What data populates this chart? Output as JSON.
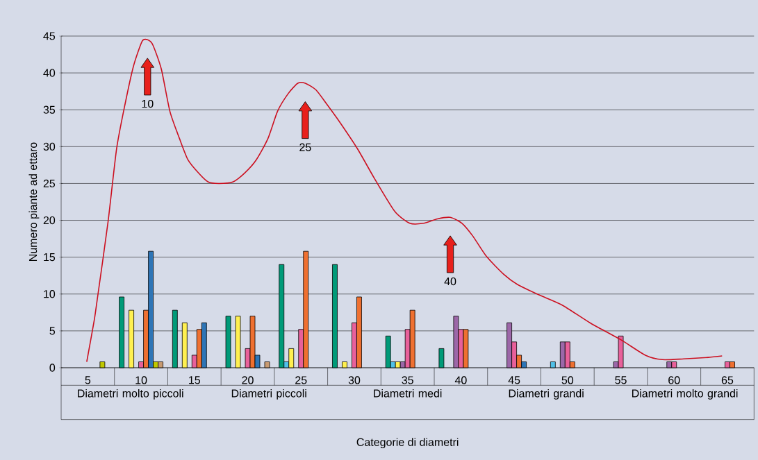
{
  "chart_data": {
    "type": "bar",
    "xlabel": "Categorie di diametri",
    "ylabel": "Numero piante ad ettaro",
    "x": [
      5,
      10,
      15,
      20,
      25,
      30,
      35,
      40,
      45,
      50,
      55,
      60,
      65
    ],
    "xlim": [
      2.5,
      67.5
    ],
    "xticks": [
      5,
      10,
      15,
      20,
      25,
      30,
      35,
      40,
      45,
      50,
      55,
      60,
      65
    ],
    "ylim": [
      0,
      45
    ],
    "yticks": [
      0,
      5,
      10,
      15,
      20,
      25,
      30,
      35,
      40,
      45
    ],
    "grid": "y",
    "series": [
      {
        "color": "#009a78",
        "values": [
          null,
          9.6,
          7.8,
          7.0,
          14.0,
          14.0,
          4.3,
          2.6,
          null,
          null,
          null,
          null,
          null
        ]
      },
      {
        "color": "#4fc0e8",
        "values": [
          null,
          null,
          null,
          null,
          0.8,
          null,
          0.8,
          null,
          null,
          0.8,
          null,
          null,
          null
        ]
      },
      {
        "color": "#fff050",
        "values": [
          null,
          7.8,
          6.1,
          7.0,
          2.6,
          0.8,
          0.8,
          null,
          null,
          null,
          null,
          null,
          null
        ]
      },
      {
        "color": "#9c67a8",
        "values": [
          null,
          null,
          null,
          null,
          null,
          null,
          0.8,
          7.0,
          6.1,
          3.5,
          0.8,
          0.8,
          null
        ]
      },
      {
        "color": "#e8609a",
        "values": [
          null,
          0.8,
          1.7,
          2.6,
          5.2,
          6.1,
          5.2,
          5.2,
          3.5,
          3.5,
          4.3,
          0.8,
          0.8
        ]
      },
      {
        "color": "#ef7030",
        "values": [
          null,
          7.8,
          5.2,
          7.0,
          15.8,
          9.6,
          7.8,
          5.2,
          1.7,
          0.8,
          null,
          null,
          0.8
        ]
      },
      {
        "color": "#2e75b6",
        "values": [
          null,
          15.8,
          6.1,
          1.7,
          null,
          null,
          null,
          null,
          0.8,
          null,
          null,
          null,
          null
        ]
      },
      {
        "color": "#c0c800",
        "values": [
          0.8,
          0.8,
          null,
          null,
          null,
          null,
          null,
          null,
          null,
          null,
          null,
          null,
          null
        ]
      },
      {
        "color": "#c89a70",
        "values": [
          null,
          0.8,
          null,
          0.8,
          null,
          null,
          null,
          null,
          null,
          null,
          null,
          null,
          null
        ]
      },
      {
        "type": "line",
        "color": "#cc1020",
        "x": [
          4.9,
          5.6,
          5.9,
          6.9,
          7.7,
          8.5,
          9.3,
          10.1,
          10.6,
          11.1,
          11.9,
          12.7,
          13.6,
          14.4,
          15.4,
          16.3,
          17.3,
          18.6,
          19.7,
          20.8,
          21.9,
          22.8,
          23.8,
          24.7,
          25.4,
          26.4,
          27.4,
          28.6,
          30.3,
          32,
          33.8,
          35.2,
          36.5,
          37.8,
          39,
          40.1,
          41.1,
          42.4,
          44,
          45.3,
          47.3,
          49.5,
          52.1,
          55,
          57.3,
          58.9,
          60.9,
          63.2,
          64.5
        ],
        "values": [
          0.8,
          6.4,
          9.4,
          19.8,
          29.7,
          35.8,
          41,
          44.3,
          44.5,
          43.8,
          40.5,
          34.8,
          31.1,
          28.2,
          26.4,
          25.2,
          25,
          25.2,
          26.4,
          28.2,
          31.1,
          34.8,
          37.2,
          38.6,
          38.6,
          37.7,
          35.8,
          33.4,
          29.7,
          25.4,
          21.2,
          19.6,
          19.6,
          20.2,
          20.4,
          19.6,
          17.9,
          15.1,
          12.7,
          11.3,
          9.9,
          8.5,
          6.1,
          3.8,
          1.7,
          1.1,
          1.2,
          1.4,
          1.6
        ]
      }
    ],
    "annotations": [
      "10",
      "25",
      "40",
      "Diametri molto piccoli",
      "Diametri piccoli",
      "Diametri medi",
      "Diametri grandi",
      "Diametri molto grandi"
    ]
  }
}
